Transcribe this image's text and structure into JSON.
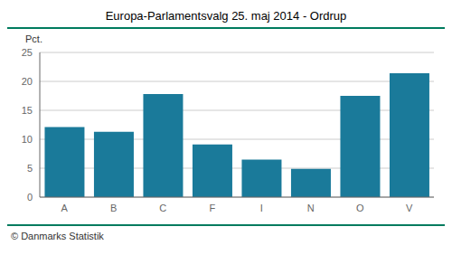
{
  "chart_data": {
    "type": "bar",
    "title": "Europa-Parlamentsvalg 25. maj 2014 - Ordrup",
    "categories": [
      "A",
      "B",
      "C",
      "F",
      "I",
      "N",
      "O",
      "V"
    ],
    "values": [
      12.1,
      11.3,
      17.8,
      9.1,
      6.5,
      4.9,
      17.5,
      21.4
    ],
    "color": "#1a7a9a",
    "ylabel": "Pct.",
    "ylim": [
      0,
      25
    ],
    "yticks": [
      0,
      5,
      10,
      15,
      20,
      25
    ],
    "grid": true,
    "annotations": [
      "© Danmarks Statistik"
    ]
  }
}
